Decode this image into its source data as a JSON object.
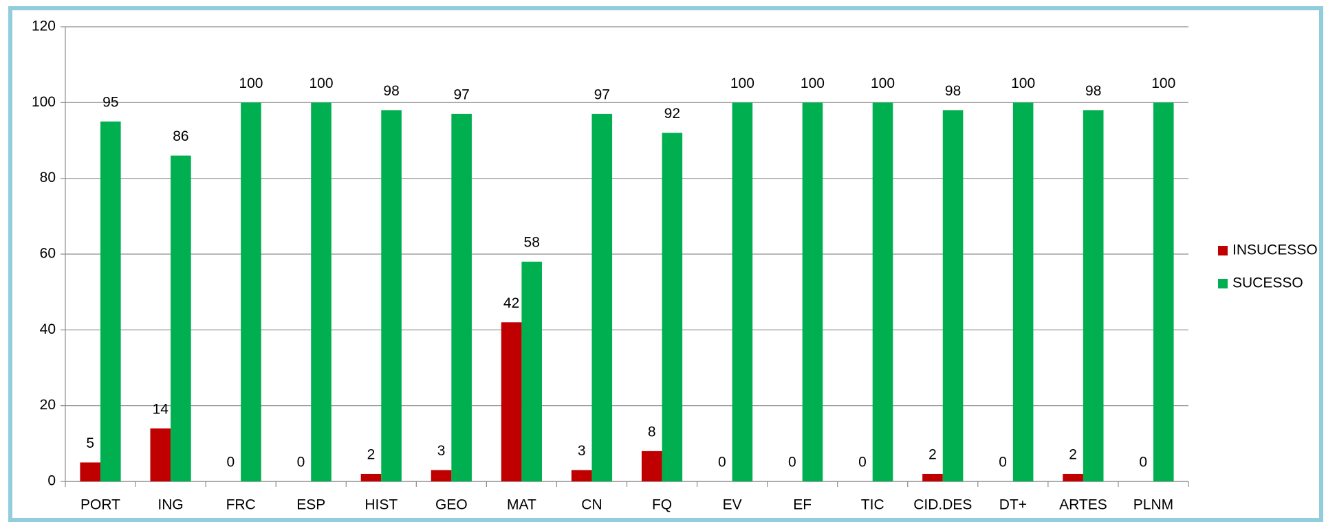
{
  "chart_data": {
    "type": "bar",
    "categories": [
      "PORT",
      "ING",
      "FRC",
      "ESP",
      "HIST",
      "GEO",
      "MAT",
      "CN",
      "FQ",
      "EV",
      "EF",
      "TIC",
      "CID.DES",
      "DT+",
      "ARTES",
      "PLNM"
    ],
    "series": [
      {
        "name": "INSUCESSO",
        "color": "#c00000",
        "values": [
          5,
          14,
          0,
          0,
          2,
          3,
          42,
          3,
          8,
          0,
          0,
          0,
          2,
          0,
          2,
          0
        ]
      },
      {
        "name": "SUCESSO",
        "color": "#00b050",
        "values": [
          95,
          86,
          100,
          100,
          98,
          97,
          58,
          97,
          92,
          100,
          100,
          100,
          98,
          100,
          98,
          100
        ]
      }
    ],
    "ylim": [
      0,
      120
    ],
    "yticks": [
      0,
      20,
      40,
      60,
      80,
      100,
      120
    ],
    "grid": true,
    "legend": "right"
  }
}
